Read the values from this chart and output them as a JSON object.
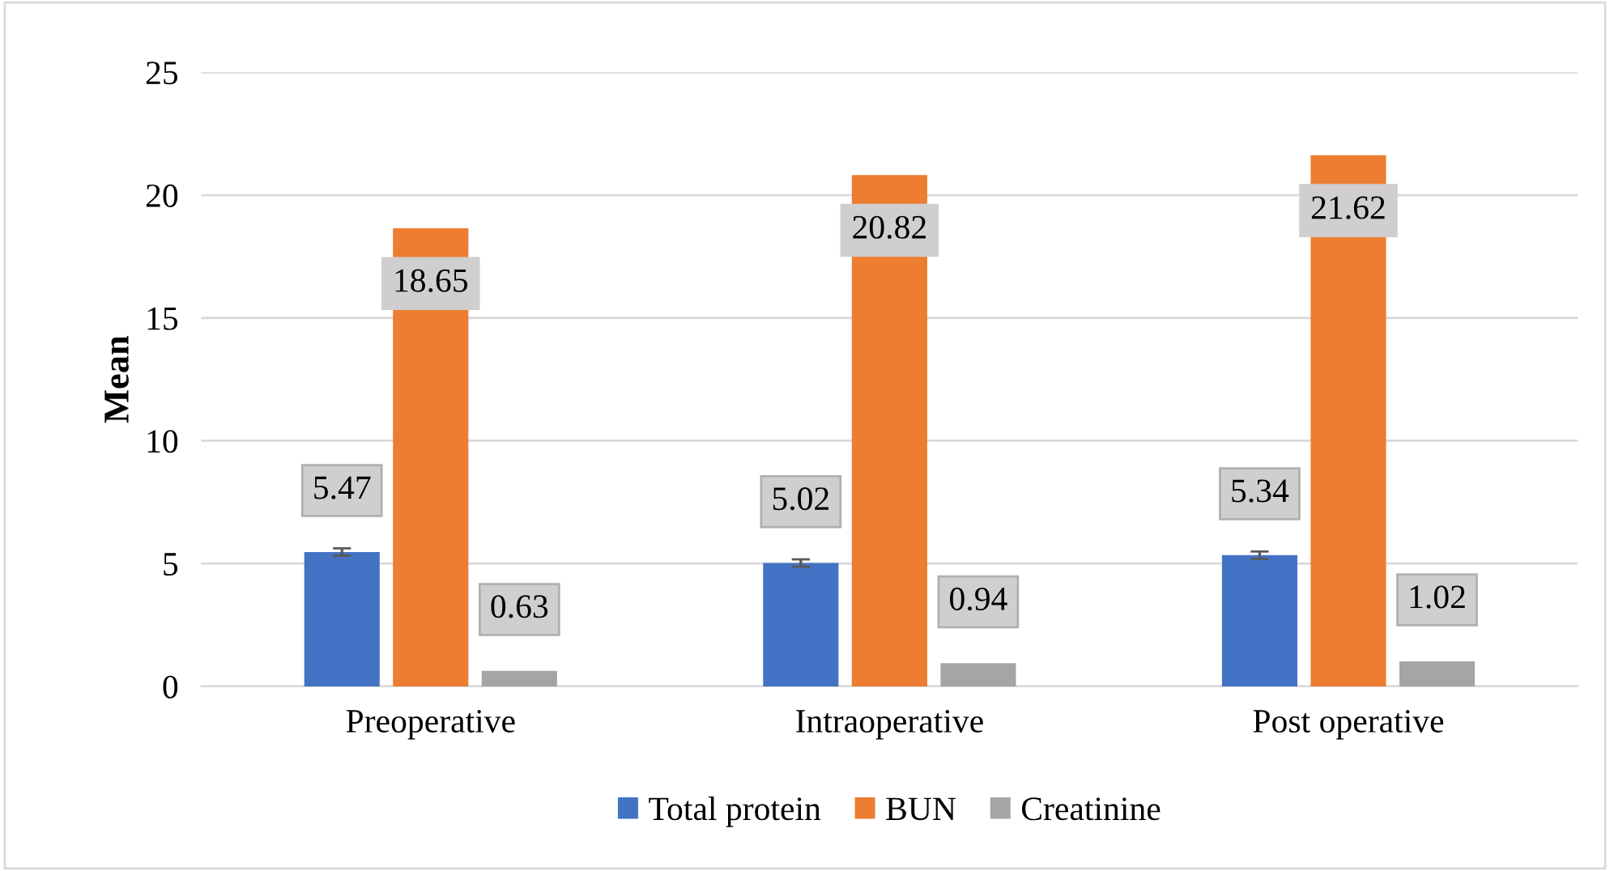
{
  "chart_data": {
    "type": "bar",
    "ylabel": "Mean",
    "categories": [
      "Preoperative",
      "Intraoperative",
      "Post operative"
    ],
    "series": [
      {
        "name": "Total protein",
        "color": "#4472c4",
        "values": [
          5.47,
          5.02,
          5.34
        ],
        "errors": [
          0.15,
          0.15,
          0.15
        ]
      },
      {
        "name": "BUN",
        "color": "#ed7d31",
        "values": [
          18.65,
          20.82,
          21.62
        ]
      },
      {
        "name": "Creatinine",
        "color": "#a5a5a5",
        "values": [
          0.63,
          0.94,
          1.02
        ]
      }
    ],
    "ylim": [
      0,
      25
    ],
    "yticks": [
      0,
      5,
      10,
      15,
      20,
      25
    ],
    "grid": "y",
    "legend": "bottom",
    "data_labels": true
  }
}
